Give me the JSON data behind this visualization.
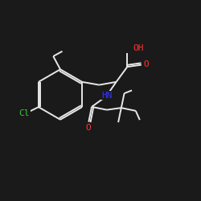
{
  "background_color": "#1a1a1a",
  "bond_color": "#e8e8e8",
  "label_colors": {
    "O": "#ff3333",
    "N": "#3333ff",
    "Cl": "#33cc33",
    "OH": "#ff3333"
  },
  "figsize": [
    2.5,
    2.5
  ],
  "dpi": 100
}
